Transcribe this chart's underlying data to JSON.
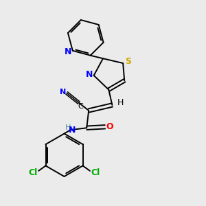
{
  "background_color": "#ebebeb",
  "bond_color": "#000000",
  "lw": 1.4,
  "figsize": [
    3.0,
    3.0
  ],
  "dpi": 100,
  "colors": {
    "N": "#0000ff",
    "S": "#ccaa00",
    "O": "#ff0000",
    "Cl": "#00aa00",
    "NH": "#4a9090",
    "C": "#000000",
    "H": "#000000"
  }
}
